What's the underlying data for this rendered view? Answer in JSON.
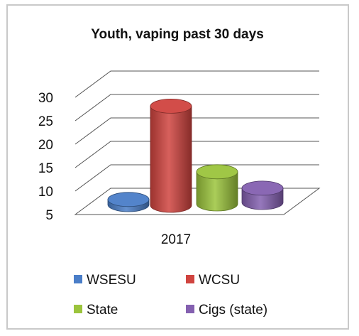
{
  "chart_data": {
    "type": "bar",
    "title": "Youth, vaping past 30 days",
    "categories": [
      "2017"
    ],
    "series": [
      {
        "name": "WSESU",
        "values": [
          7
        ],
        "color": "#4a7ec8"
      },
      {
        "name": "WCSU",
        "values": [
          26
        ],
        "color": "#d0443f"
      },
      {
        "name": "State",
        "values": [
          12
        ],
        "color": "#9bc43c"
      },
      {
        "name": "Cigs (state)",
        "values": [
          8.5
        ],
        "color": "#8460b0"
      }
    ],
    "yticks": [
      "5",
      "10",
      "15",
      "20",
      "25",
      "30"
    ],
    "ylim": [
      5,
      30
    ],
    "grid": true,
    "legend_position": "bottom",
    "bar_shape": "cylinder-3d"
  }
}
